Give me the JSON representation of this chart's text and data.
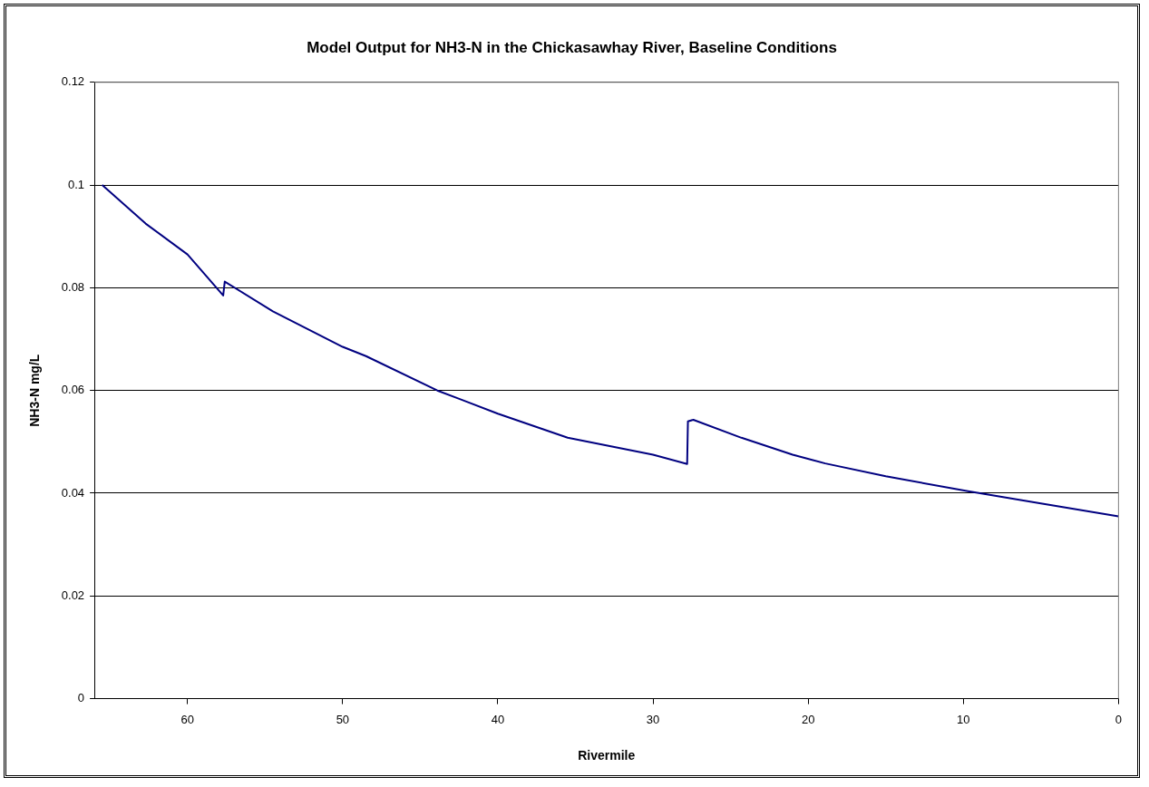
{
  "chart_data": {
    "type": "line",
    "title": "Model Output for NH3-N in the Chickasawhay River, Baseline Conditions",
    "xlabel": "Rivermile",
    "ylabel": "NH3-N mg/L",
    "series": [
      {
        "color": "#000080",
        "x": [
          65.5,
          62.7,
          60,
          57.7,
          57.6,
          54.5,
          50,
          48.5,
          43.9,
          40,
          35.5,
          30,
          27.8,
          27.75,
          27.4,
          24.3,
          21,
          18.9,
          15,
          9.7,
          5,
          0
        ],
        "values": [
          0.1,
          0.0925,
          0.0865,
          0.0785,
          0.0812,
          0.0754,
          0.0685,
          0.0667,
          0.06,
          0.0555,
          0.0508,
          0.0475,
          0.0457,
          0.054,
          0.0543,
          0.0508,
          0.0475,
          0.0458,
          0.0433,
          0.0404,
          0.038,
          0.0355
        ]
      }
    ],
    "xlim": [
      66,
      0
    ],
    "xticks": [
      60,
      50,
      40,
      30,
      20,
      10,
      0
    ],
    "ylim": [
      0,
      0.12
    ],
    "yticks": [
      0,
      0.02,
      0.04,
      0.06,
      0.08,
      0.1,
      0.12
    ],
    "grid": "y",
    "legend": false,
    "marker": "none",
    "line_style": "solid"
  }
}
